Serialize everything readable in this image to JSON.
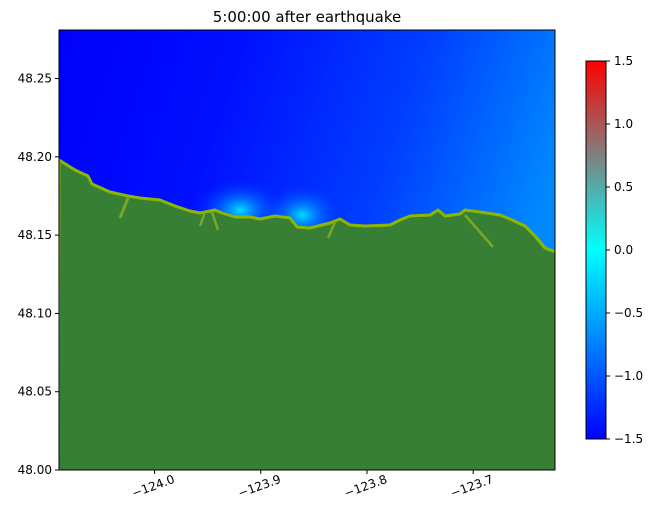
{
  "chart_data": {
    "type": "heatmap",
    "title": "5:00:00 after earthquake",
    "xlabel": "",
    "ylabel": "",
    "xlim": [
      -124.09,
      -123.623
    ],
    "ylim": [
      48.0,
      48.281
    ],
    "x_ticks": [
      -124.0,
      -123.9,
      -123.8,
      -123.7
    ],
    "x_tick_labels": [
      "−124.0",
      "−123.9",
      "−123.8",
      "−123.7"
    ],
    "y_ticks": [
      48.0,
      48.05,
      48.1,
      48.15,
      48.2,
      48.25
    ],
    "y_tick_labels": [
      "48.00",
      "48.05",
      "48.10",
      "48.15",
      "48.20",
      "48.25"
    ],
    "grid": false,
    "colorbar": {
      "range": [
        -1.5,
        1.5
      ],
      "ticks": [
        -1.5,
        -1.0,
        -0.5,
        0.0,
        0.5,
        1.0,
        1.5
      ],
      "tick_labels": [
        "−1.5",
        "−1.0",
        "−0.5",
        "0.0",
        "0.5",
        "1.0",
        "1.5"
      ],
      "colors": [
        "#0000ff",
        "#0080ff",
        "#00ffff",
        "#808080",
        "#ff0000"
      ],
      "placement": "right"
    },
    "land_color": "#367f35",
    "shore_color": "#8db600"
  }
}
